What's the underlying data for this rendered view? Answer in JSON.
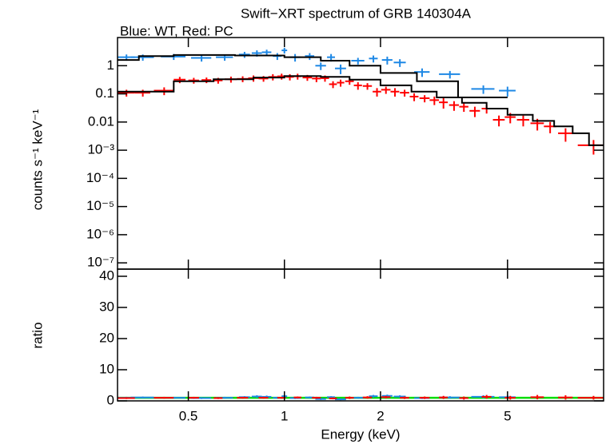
{
  "chart_data": [
    {
      "type": "errorbar",
      "title": "Swift−XRT spectrum of GRB 140304A",
      "subtitle": "Blue: WT, Red: PC",
      "ylabel": "counts s⁻¹ keV⁻¹",
      "log_x": true,
      "log_y": true,
      "xlim": [
        0.3,
        10
      ],
      "ylim": [
        6e-08,
        10
      ],
      "yticks": [
        {
          "value": 1,
          "label": "1"
        },
        {
          "value": 0.1,
          "label": "0.1"
        },
        {
          "value": 0.01,
          "label": "0.01"
        },
        {
          "value": 0.001,
          "label": "10⁻³"
        },
        {
          "value": 0.0001,
          "label": "10⁻⁴"
        },
        {
          "value": 1e-05,
          "label": "10⁻⁵"
        },
        {
          "value": 1e-06,
          "label": "10⁻⁶"
        },
        {
          "value": 1e-07,
          "label": "10⁻⁷"
        }
      ],
      "series": [
        {
          "name": "WT",
          "color": "#1e88e5",
          "x": [
            0.32,
            0.36,
            0.45,
            0.55,
            0.65,
            0.75,
            0.82,
            0.88,
            0.95,
            1.0,
            1.08,
            1.2,
            1.3,
            1.4,
            1.5,
            1.7,
            1.9,
            2.1,
            2.3,
            2.7,
            3.3,
            4.2,
            5.0
          ],
          "xerr": [
            0.02,
            0.03,
            0.04,
            0.04,
            0.04,
            0.03,
            0.03,
            0.03,
            0.03,
            0.02,
            0.04,
            0.04,
            0.05,
            0.04,
            0.06,
            0.08,
            0.06,
            0.08,
            0.1,
            0.15,
            0.25,
            0.35,
            0.3
          ],
          "values": [
            2.0,
            2.0,
            2.1,
            1.9,
            2.0,
            2.5,
            2.8,
            3.0,
            2.2,
            3.5,
            2.0,
            2.2,
            1.0,
            2.0,
            0.8,
            1.5,
            1.8,
            1.6,
            1.3,
            0.6,
            0.5,
            0.15,
            0.13
          ],
          "errors": [
            0.5,
            0.5,
            0.5,
            0.5,
            0.5,
            0.6,
            0.7,
            0.7,
            0.6,
            0.8,
            0.6,
            0.6,
            0.3,
            0.6,
            0.3,
            0.4,
            0.5,
            0.5,
            0.4,
            0.2,
            0.15,
            0.05,
            0.05
          ]
        },
        {
          "name": "PC",
          "color": "#ff0000",
          "x": [
            0.32,
            0.36,
            0.42,
            0.47,
            0.52,
            0.57,
            0.62,
            0.68,
            0.74,
            0.8,
            0.86,
            0.92,
            0.98,
            1.04,
            1.1,
            1.18,
            1.26,
            1.34,
            1.42,
            1.5,
            1.6,
            1.7,
            1.82,
            1.95,
            2.08,
            2.22,
            2.38,
            2.55,
            2.75,
            2.95,
            3.15,
            3.4,
            3.65,
            3.95,
            4.3,
            4.7,
            5.1,
            5.6,
            6.2,
            6.8,
            7.6,
            9.3
          ],
          "xerr": [
            0.02,
            0.02,
            0.03,
            0.02,
            0.02,
            0.02,
            0.02,
            0.03,
            0.03,
            0.03,
            0.03,
            0.03,
            0.03,
            0.03,
            0.03,
            0.04,
            0.04,
            0.04,
            0.04,
            0.04,
            0.05,
            0.05,
            0.06,
            0.06,
            0.07,
            0.07,
            0.08,
            0.08,
            0.1,
            0.1,
            0.1,
            0.12,
            0.12,
            0.15,
            0.15,
            0.2,
            0.2,
            0.25,
            0.3,
            0.3,
            0.4,
            1.0
          ],
          "values": [
            0.11,
            0.11,
            0.13,
            0.32,
            0.3,
            0.31,
            0.3,
            0.33,
            0.34,
            0.36,
            0.35,
            0.4,
            0.42,
            0.4,
            0.42,
            0.38,
            0.35,
            0.36,
            0.22,
            0.25,
            0.28,
            0.2,
            0.19,
            0.12,
            0.14,
            0.12,
            0.11,
            0.08,
            0.07,
            0.06,
            0.05,
            0.04,
            0.035,
            0.025,
            0.03,
            0.012,
            0.015,
            0.012,
            0.009,
            0.007,
            0.004,
            0.0015
          ],
          "errors": [
            0.03,
            0.03,
            0.04,
            0.08,
            0.07,
            0.07,
            0.07,
            0.08,
            0.08,
            0.09,
            0.08,
            0.1,
            0.1,
            0.1,
            0.1,
            0.09,
            0.09,
            0.09,
            0.06,
            0.07,
            0.07,
            0.06,
            0.05,
            0.04,
            0.04,
            0.04,
            0.03,
            0.025,
            0.02,
            0.02,
            0.02,
            0.015,
            0.012,
            0.01,
            0.01,
            0.005,
            0.006,
            0.005,
            0.004,
            0.003,
            0.002,
            0.0008
          ]
        },
        {
          "name": "WT model",
          "kind": "step",
          "color": "#000000",
          "bins": [
            0.3,
            0.35,
            0.45,
            0.7,
            1.0,
            1.3,
            1.6,
            2.0,
            2.6,
            3.5,
            5.0
          ],
          "values": [
            1.6,
            2.2,
            2.4,
            2.3,
            2.0,
            1.5,
            1.0,
            0.55,
            0.28,
            0.075
          ]
        },
        {
          "name": "PC model",
          "kind": "step",
          "color": "#000000",
          "bins": [
            0.3,
            0.45,
            0.6,
            0.8,
            1.0,
            1.3,
            1.6,
            2.0,
            2.5,
            3.0,
            3.6,
            4.3,
            5.0,
            6.0,
            7.0,
            8.0,
            9.0,
            10.0
          ],
          "values": [
            0.12,
            0.28,
            0.33,
            0.38,
            0.43,
            0.4,
            0.32,
            0.2,
            0.12,
            0.075,
            0.048,
            0.03,
            0.018,
            0.011,
            0.007,
            0.004,
            0.0015
          ]
        }
      ]
    },
    {
      "type": "errorbar",
      "ylabel": "ratio",
      "xlabel": "Energy (keV)",
      "log_x": true,
      "log_y": false,
      "xlim": [
        0.3,
        10
      ],
      "ylim": [
        0,
        42.3
      ],
      "xticks": [
        0.5,
        1,
        2,
        5
      ],
      "yticks": [
        0,
        10,
        20,
        30,
        40
      ],
      "reference_line": {
        "value": 1,
        "color": "#00dd00"
      },
      "series": [
        {
          "name": "WT ratio",
          "color": "#1e88e5",
          "x": [
            0.32,
            0.36,
            0.45,
            0.55,
            0.65,
            0.75,
            0.82,
            0.88,
            0.95,
            1.0,
            1.08,
            1.2,
            1.3,
            1.4,
            1.5,
            1.7,
            1.9,
            2.1,
            2.3,
            2.7,
            3.3,
            4.2,
            5.0
          ],
          "xerr": [
            0.02,
            0.03,
            0.04,
            0.04,
            0.04,
            0.03,
            0.03,
            0.03,
            0.03,
            0.02,
            0.04,
            0.04,
            0.05,
            0.04,
            0.06,
            0.08,
            0.06,
            0.08,
            0.1,
            0.15,
            0.25,
            0.35,
            0.3
          ],
          "values": [
            1.0,
            1.1,
            1.0,
            0.9,
            1.0,
            1.2,
            1.4,
            1.3,
            1.0,
            1.5,
            0.9,
            1.1,
            0.6,
            1.2,
            0.5,
            1.0,
            1.5,
            1.6,
            1.4,
            0.9,
            1.1,
            1.3,
            1.2
          ],
          "errors": [
            0.3,
            0.3,
            0.3,
            0.3,
            0.3,
            0.3,
            0.4,
            0.4,
            0.3,
            0.4,
            0.3,
            0.3,
            0.3,
            0.3,
            0.3,
            0.3,
            0.4,
            0.4,
            0.4,
            0.3,
            0.4,
            0.5,
            0.5
          ]
        },
        {
          "name": "PC ratio",
          "color": "#ff0000",
          "x": [
            0.32,
            0.42,
            0.52,
            0.62,
            0.74,
            0.86,
            0.98,
            1.1,
            1.26,
            1.42,
            1.6,
            1.82,
            2.08,
            2.38,
            2.75,
            3.15,
            3.65,
            4.3,
            5.1,
            6.2,
            7.6,
            9.3
          ],
          "xerr": [
            0.02,
            0.03,
            0.02,
            0.02,
            0.03,
            0.03,
            0.03,
            0.03,
            0.04,
            0.04,
            0.05,
            0.06,
            0.07,
            0.08,
            0.1,
            0.1,
            0.12,
            0.15,
            0.2,
            0.3,
            0.4,
            1.0
          ],
          "values": [
            0.9,
            1.0,
            1.0,
            0.9,
            1.0,
            1.0,
            1.0,
            1.1,
            1.0,
            0.8,
            1.0,
            1.1,
            1.2,
            1.0,
            1.0,
            1.1,
            0.9,
            1.3,
            1.0,
            1.2,
            1.1,
            1.0
          ],
          "errors": [
            0.3,
            0.3,
            0.3,
            0.3,
            0.3,
            0.3,
            0.3,
            0.3,
            0.3,
            0.3,
            0.4,
            0.4,
            0.4,
            0.4,
            0.4,
            0.5,
            0.5,
            0.6,
            0.6,
            0.7,
            0.7,
            0.6
          ]
        }
      ]
    }
  ]
}
